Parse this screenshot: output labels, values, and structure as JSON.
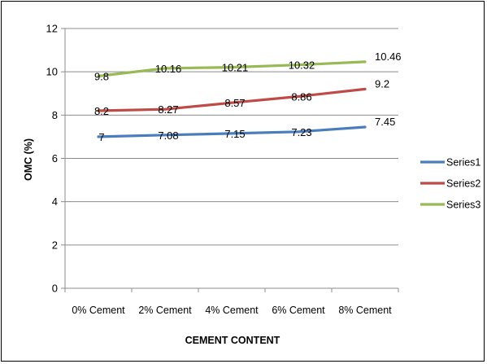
{
  "chart_data": {
    "type": "line",
    "categories": [
      "0% Cement",
      "2% Cement",
      "4% Cement",
      "6% Cement",
      "8% Cement"
    ],
    "series": [
      {
        "name": "Series1",
        "color": "#4a7ebb",
        "values": [
          7,
          7.08,
          7.15,
          7.23,
          7.45
        ],
        "labels": [
          "7",
          "7.08",
          "7.15",
          "7.23",
          "7.45"
        ]
      },
      {
        "name": "Series2",
        "color": "#be4b48",
        "values": [
          8.2,
          8.27,
          8.57,
          8.86,
          9.2
        ],
        "labels": [
          "8.2",
          "8.27",
          "8.57",
          "8.86",
          "9.2"
        ]
      },
      {
        "name": "Series3",
        "color": "#98b954",
        "values": [
          9.8,
          10.16,
          10.21,
          10.32,
          10.46
        ],
        "labels": [
          "9.8",
          "10.16",
          "10.21",
          "10.32",
          "10.46"
        ]
      }
    ],
    "xlabel": "CEMENT CONTENT",
    "ylabel": "OMC (%)",
    "ylim": [
      0,
      12
    ],
    "yticks": [
      0,
      2,
      4,
      6,
      8,
      10,
      12
    ],
    "grid": true,
    "legend_position": "right"
  }
}
